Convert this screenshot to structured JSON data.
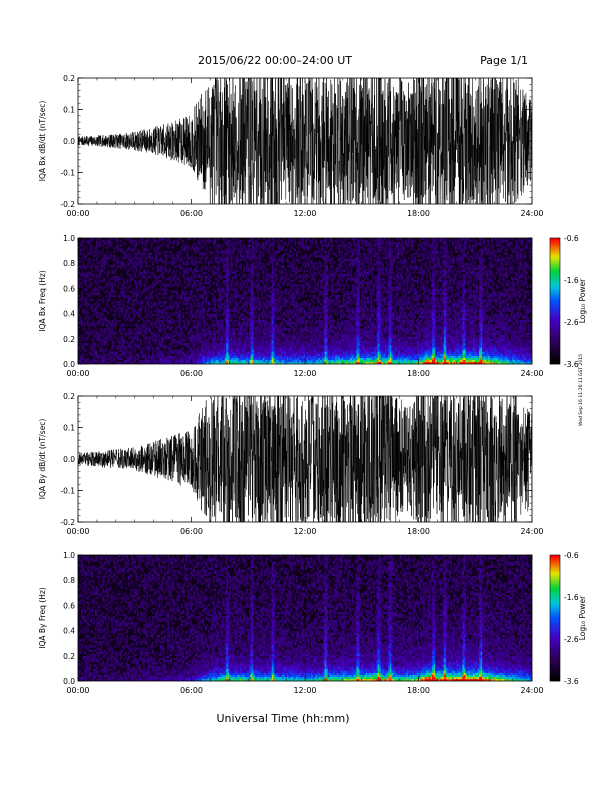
{
  "header": {
    "title": "2015/06/22  00:00–24:00 UT",
    "page": "Page 1/1"
  },
  "footer": {
    "xlabel": "Universal Time (hh:mm)"
  },
  "side_note": "Wed Sep 16 11:26:11 GST 2015",
  "colors": {
    "trace": "#000000",
    "axis": "#000000",
    "background": "#ffffff"
  },
  "chart_data": [
    {
      "type": "line",
      "ylabel": "IQA Bx dB/dt (nT/sec)",
      "xlim": [
        0,
        24
      ],
      "ylim": [
        -0.2,
        0.2
      ],
      "xticks": [
        "00:00",
        "06:00",
        "12:00",
        "18:00",
        "24:00"
      ],
      "yticks": [
        "-0.2",
        "-0.1",
        "0.0",
        "0.1",
        "0.2"
      ],
      "envelope": {
        "x_hours": [
          0,
          1,
          2,
          3,
          4,
          5,
          6,
          6.5,
          7,
          7.5,
          8,
          9,
          10,
          11,
          12,
          13,
          14,
          15,
          16,
          17,
          17.5,
          18,
          19,
          20,
          21,
          22,
          23,
          24
        ],
        "amplitude": [
          0.012,
          0.014,
          0.018,
          0.025,
          0.035,
          0.05,
          0.07,
          0.12,
          0.17,
          0.2,
          0.2,
          0.2,
          0.2,
          0.2,
          0.18,
          0.2,
          0.2,
          0.2,
          0.2,
          0.17,
          0.15,
          0.2,
          0.2,
          0.2,
          0.2,
          0.2,
          0.18,
          0.1
        ]
      }
    },
    {
      "type": "heatmap",
      "ylabel": "IQA Bx Freq (Hz)",
      "xlim": [
        0,
        24
      ],
      "ylim": [
        0,
        1.0
      ],
      "xticks": [
        "00:00",
        "06:00",
        "12:00",
        "18:00",
        "24:00"
      ],
      "yticks": [
        "0.0",
        "0.2",
        "0.4",
        "0.6",
        "0.8",
        "1.0"
      ],
      "colorbar": {
        "label": "Log₁₀ Power",
        "range": [
          -3.6,
          -0.6
        ],
        "ticks": [
          "-0.6",
          "-1.6",
          "-2.6",
          "-3.6"
        ]
      },
      "activity_hours": [
        0,
        3,
        6,
        7,
        8,
        10,
        12,
        14,
        15,
        16,
        17,
        18,
        18.5,
        19,
        20,
        21,
        22,
        23,
        24
      ],
      "activity_level": [
        0.05,
        0.06,
        0.15,
        0.45,
        0.55,
        0.5,
        0.45,
        0.6,
        0.65,
        0.7,
        0.55,
        0.6,
        0.95,
        0.75,
        0.8,
        0.85,
        0.7,
        0.5,
        0.4
      ],
      "bright_spikes_hours": [
        7.9,
        9.2,
        10.3,
        13.1,
        14.8,
        15.9,
        16.5,
        18.8,
        19.4,
        20.4,
        21.3
      ]
    },
    {
      "type": "line",
      "ylabel": "IQA By dB/dt (nT/sec)",
      "xlim": [
        0,
        24
      ],
      "ylim": [
        -0.2,
        0.2
      ],
      "xticks": [
        "00:00",
        "06:00",
        "12:00",
        "18:00",
        "24:00"
      ],
      "yticks": [
        "-0.2",
        "-0.1",
        "0.0",
        "0.1",
        "0.2"
      ],
      "envelope": {
        "x_hours": [
          0,
          1,
          2,
          3,
          4,
          5,
          6,
          6.5,
          7,
          7.5,
          8,
          9,
          10,
          11,
          12,
          13,
          14,
          15,
          16,
          17,
          17.5,
          18,
          19,
          20,
          21,
          22,
          23,
          24
        ],
        "amplitude": [
          0.015,
          0.02,
          0.025,
          0.03,
          0.045,
          0.06,
          0.08,
          0.13,
          0.17,
          0.2,
          0.2,
          0.2,
          0.2,
          0.2,
          0.18,
          0.2,
          0.2,
          0.2,
          0.2,
          0.16,
          0.14,
          0.2,
          0.2,
          0.2,
          0.2,
          0.2,
          0.18,
          0.12
        ]
      }
    },
    {
      "type": "heatmap",
      "ylabel": "IQA By Freq (Hz)",
      "xlim": [
        0,
        24
      ],
      "ylim": [
        0,
        1.0
      ],
      "xticks": [
        "00:00",
        "06:00",
        "12:00",
        "18:00",
        "24:00"
      ],
      "yticks": [
        "0.0",
        "0.2",
        "0.4",
        "0.6",
        "0.8",
        "1.0"
      ],
      "colorbar": {
        "label": "Log₁₀ Power",
        "range": [
          -3.6,
          -0.6
        ],
        "ticks": [
          "-0.6",
          "-1.6",
          "-2.6",
          "-3.6"
        ]
      },
      "activity_hours": [
        0,
        3,
        6,
        7,
        8,
        10,
        12,
        14,
        15,
        16,
        17,
        18,
        18.5,
        19,
        20,
        21,
        22,
        23,
        24
      ],
      "activity_level": [
        0.06,
        0.07,
        0.18,
        0.5,
        0.6,
        0.55,
        0.5,
        0.65,
        0.7,
        0.75,
        0.6,
        0.65,
        1.0,
        0.8,
        0.85,
        0.9,
        0.75,
        0.55,
        0.45
      ],
      "bright_spikes_hours": [
        7.9,
        9.2,
        10.3,
        13.1,
        14.8,
        15.9,
        16.5,
        18.8,
        19.4,
        20.4,
        21.3
      ]
    }
  ]
}
